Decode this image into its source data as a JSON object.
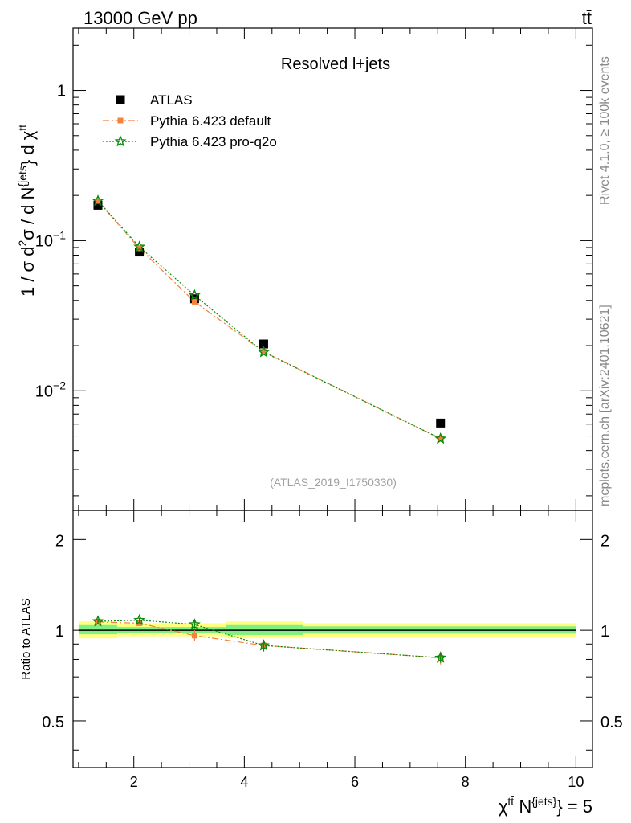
{
  "header": {
    "energy_label": "13000 GeV pp",
    "process_label": "tt̄"
  },
  "side_labels": {
    "rivet": "Rivet 4.1.0, ≥ 100k events",
    "mcplots": "mcplots.cern.ch [arXiv:2401.10621]"
  },
  "chart_data": {
    "type": "scatter",
    "title": "Resolved l+jets",
    "analysis_id": "(ATLAS_2019_I1750330)",
    "xlabel": "χ^{tt̄} N^{jets} = 5",
    "xlabel_parts": {
      "chi": "χ",
      "chi_sup": "tt̄",
      "n": " N",
      "n_sup": "{jets}",
      "tail": "} = 5"
    },
    "ylabel": "1 / σ d²σ / d N^{jets} d χ^{tt̄}",
    "ylabel_parts": {
      "a": "1 / σ d",
      "a_sup": "2",
      "b": "σ / d N",
      "b_sup": "{jets",
      "c": "} d χ",
      "c_sup": "tt̄"
    },
    "ratio_ylabel": "Ratio to ATLAS",
    "xlim": [
      0.9,
      10.3
    ],
    "xticks": [
      2,
      4,
      6,
      8,
      10
    ],
    "ylim": [
      0.0016,
      2.6
    ],
    "yticks_main": [
      {
        "v": 1,
        "base": "1",
        "exp": ""
      },
      {
        "v": 0.1,
        "base": "10",
        "exp": "−1"
      },
      {
        "v": 0.01,
        "base": "10",
        "exp": "−2"
      }
    ],
    "ratio_ylim": [
      0.35,
      2.5
    ],
    "yticks_ratio": [
      {
        "v": 0.5,
        "label": "0.5"
      },
      {
        "v": 1,
        "label": "1"
      },
      {
        "v": 2,
        "label": "2"
      }
    ],
    "bins": [
      {
        "lo": 1.0,
        "hi": 1.7,
        "band_yellow": [
          0.94,
          1.07
        ],
        "band_green": [
          0.97,
          1.04
        ]
      },
      {
        "lo": 1.7,
        "hi": 3.67,
        "band_yellow": [
          0.955,
          1.055
        ],
        "band_green": [
          0.98,
          1.025
        ]
      },
      {
        "lo": 3.67,
        "hi": 5.07,
        "band_yellow": [
          0.94,
          1.07
        ],
        "band_green": [
          0.965,
          1.04
        ]
      },
      {
        "lo": 5.07,
        "hi": 10.0,
        "band_yellow": [
          0.95,
          1.055
        ],
        "band_green": [
          0.975,
          1.03
        ]
      }
    ],
    "series": [
      {
        "name": "ATLAS",
        "color": "#000000",
        "marker": "square",
        "x": [
          1.35,
          2.1,
          3.1,
          4.35,
          7.55
        ],
        "y": [
          0.172,
          0.084,
          0.041,
          0.0205,
          0.0061
        ]
      },
      {
        "name": "Pythia 6.423 default",
        "color": "#f5813f",
        "marker": "small-square",
        "line": "dashdot",
        "x": [
          1.35,
          2.1,
          3.1,
          4.35,
          7.55
        ],
        "y": [
          0.183,
          0.089,
          0.0392,
          0.0182,
          0.0048
        ],
        "ratio": [
          1.065,
          1.055,
          0.96,
          0.89,
          0.81
        ],
        "ratio_err": [
          0.02,
          0.02,
          0.04,
          0.04,
          0.04
        ]
      },
      {
        "name": "Pythia 6.423 pro-q2o",
        "color": "#0a8a0a",
        "marker": "star",
        "line": "dotted",
        "x": [
          1.35,
          2.1,
          3.1,
          4.35,
          7.55
        ],
        "y": [
          0.184,
          0.091,
          0.0432,
          0.0181,
          0.0048
        ],
        "ratio": [
          1.07,
          1.08,
          1.045,
          0.89,
          0.81
        ],
        "ratio_err": [
          0.02,
          0.02,
          0.03,
          0.04,
          0.03
        ]
      }
    ]
  }
}
